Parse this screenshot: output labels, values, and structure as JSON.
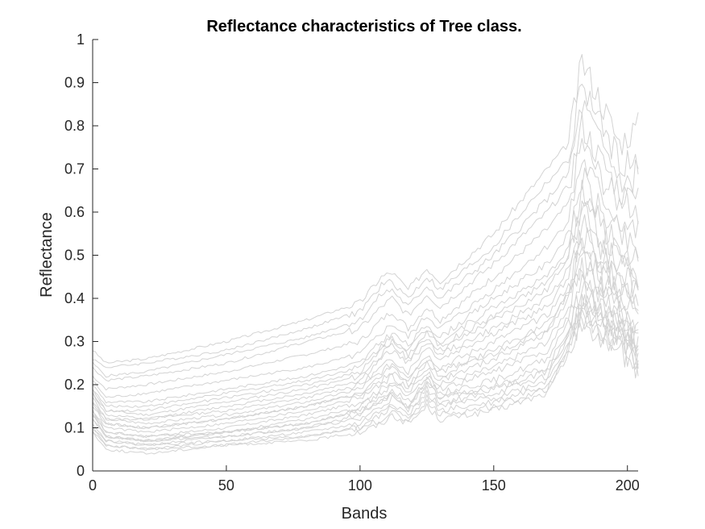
{
  "chart_data": {
    "type": "line",
    "title": "Reflectance characteristics of Tree class.",
    "xlabel": "Bands",
    "ylabel": "Reflectance",
    "xlim": [
      0,
      204
    ],
    "ylim": [
      0,
      1
    ],
    "xticks": [
      0,
      50,
      100,
      150,
      200
    ],
    "yticks": [
      0,
      0.1,
      0.2,
      0.3,
      0.4,
      0.5,
      0.6,
      0.7,
      0.8,
      0.9,
      1
    ],
    "xtick_labels": [
      "0",
      "50",
      "100",
      "150",
      "200"
    ],
    "ytick_labels": [
      "0",
      "0.1",
      "0.2",
      "0.3",
      "0.4",
      "0.5",
      "0.6",
      "0.7",
      "0.8",
      "0.9",
      "1"
    ],
    "grid": false,
    "legend": "none",
    "line_color": "#d3d3d3",
    "x_key_bands": [
      0,
      5,
      20,
      50,
      80,
      100,
      108,
      112,
      118,
      125,
      130,
      150,
      170,
      178,
      183,
      190,
      197,
      204
    ],
    "series": [
      {
        "values": [
          0.28,
          0.25,
          0.26,
          0.3,
          0.35,
          0.39,
          0.45,
          0.46,
          0.42,
          0.47,
          0.44,
          0.55,
          0.7,
          0.76,
          0.95,
          0.86,
          0.76,
          0.8
        ]
      },
      {
        "values": [
          0.26,
          0.24,
          0.25,
          0.28,
          0.33,
          0.37,
          0.43,
          0.44,
          0.4,
          0.45,
          0.42,
          0.52,
          0.67,
          0.72,
          0.9,
          0.8,
          0.72,
          0.7
        ]
      },
      {
        "values": [
          0.25,
          0.22,
          0.23,
          0.27,
          0.31,
          0.35,
          0.41,
          0.42,
          0.38,
          0.43,
          0.4,
          0.5,
          0.63,
          0.69,
          0.85,
          0.76,
          0.68,
          0.64
        ]
      },
      {
        "values": [
          0.24,
          0.21,
          0.22,
          0.25,
          0.3,
          0.33,
          0.38,
          0.4,
          0.36,
          0.41,
          0.38,
          0.48,
          0.6,
          0.66,
          0.8,
          0.72,
          0.65,
          0.6
        ]
      },
      {
        "values": [
          0.22,
          0.19,
          0.2,
          0.23,
          0.27,
          0.3,
          0.35,
          0.37,
          0.33,
          0.38,
          0.35,
          0.45,
          0.56,
          0.62,
          0.76,
          0.68,
          0.62,
          0.7
        ]
      },
      {
        "values": [
          0.21,
          0.17,
          0.18,
          0.21,
          0.24,
          0.27,
          0.32,
          0.34,
          0.31,
          0.36,
          0.33,
          0.42,
          0.52,
          0.58,
          0.72,
          0.64,
          0.58,
          0.55
        ]
      },
      {
        "values": [
          0.2,
          0.16,
          0.16,
          0.19,
          0.22,
          0.25,
          0.3,
          0.32,
          0.29,
          0.34,
          0.31,
          0.4,
          0.48,
          0.55,
          0.68,
          0.6,
          0.55,
          0.5
        ]
      },
      {
        "values": [
          0.19,
          0.15,
          0.15,
          0.18,
          0.21,
          0.24,
          0.29,
          0.31,
          0.28,
          0.33,
          0.3,
          0.38,
          0.45,
          0.52,
          0.65,
          0.57,
          0.52,
          0.48
        ]
      },
      {
        "values": [
          0.18,
          0.14,
          0.13,
          0.16,
          0.19,
          0.22,
          0.27,
          0.29,
          0.26,
          0.31,
          0.28,
          0.35,
          0.42,
          0.5,
          0.62,
          0.54,
          0.5,
          0.45
        ]
      },
      {
        "values": [
          0.18,
          0.13,
          0.12,
          0.15,
          0.18,
          0.21,
          0.26,
          0.28,
          0.25,
          0.3,
          0.27,
          0.33,
          0.4,
          0.47,
          0.58,
          0.5,
          0.47,
          0.42
        ]
      },
      {
        "values": [
          0.17,
          0.12,
          0.12,
          0.14,
          0.17,
          0.2,
          0.24,
          0.26,
          0.23,
          0.29,
          0.26,
          0.32,
          0.38,
          0.45,
          0.55,
          0.48,
          0.44,
          0.4
        ]
      },
      {
        "values": [
          0.16,
          0.12,
          0.11,
          0.13,
          0.16,
          0.19,
          0.23,
          0.25,
          0.22,
          0.27,
          0.24,
          0.3,
          0.36,
          0.43,
          0.52,
          0.46,
          0.42,
          0.38
        ]
      },
      {
        "values": [
          0.15,
          0.11,
          0.1,
          0.12,
          0.15,
          0.18,
          0.22,
          0.24,
          0.21,
          0.26,
          0.23,
          0.28,
          0.34,
          0.41,
          0.5,
          0.44,
          0.4,
          0.36
        ]
      },
      {
        "values": [
          0.14,
          0.1,
          0.09,
          0.11,
          0.14,
          0.17,
          0.2,
          0.22,
          0.19,
          0.24,
          0.21,
          0.26,
          0.32,
          0.4,
          0.48,
          0.42,
          0.38,
          0.35
        ]
      },
      {
        "values": [
          0.14,
          0.09,
          0.08,
          0.1,
          0.13,
          0.16,
          0.19,
          0.21,
          0.18,
          0.23,
          0.2,
          0.24,
          0.3,
          0.38,
          0.46,
          0.4,
          0.37,
          0.33
        ]
      },
      {
        "values": [
          0.13,
          0.09,
          0.08,
          0.09,
          0.12,
          0.15,
          0.18,
          0.2,
          0.17,
          0.22,
          0.19,
          0.23,
          0.28,
          0.36,
          0.44,
          0.38,
          0.35,
          0.32
        ]
      },
      {
        "values": [
          0.12,
          0.08,
          0.07,
          0.09,
          0.11,
          0.14,
          0.17,
          0.19,
          0.16,
          0.21,
          0.18,
          0.21,
          0.26,
          0.35,
          0.42,
          0.37,
          0.34,
          0.3
        ]
      },
      {
        "values": [
          0.12,
          0.08,
          0.07,
          0.08,
          0.1,
          0.13,
          0.16,
          0.18,
          0.15,
          0.2,
          0.17,
          0.2,
          0.24,
          0.33,
          0.4,
          0.36,
          0.33,
          0.28
        ]
      },
      {
        "values": [
          0.11,
          0.07,
          0.06,
          0.08,
          0.1,
          0.12,
          0.15,
          0.17,
          0.14,
          0.19,
          0.16,
          0.18,
          0.22,
          0.31,
          0.38,
          0.35,
          0.32,
          0.27
        ]
      },
      {
        "values": [
          0.1,
          0.07,
          0.06,
          0.07,
          0.09,
          0.11,
          0.14,
          0.16,
          0.13,
          0.18,
          0.15,
          0.17,
          0.21,
          0.3,
          0.37,
          0.34,
          0.31,
          0.26
        ]
      },
      {
        "values": [
          0.1,
          0.06,
          0.05,
          0.07,
          0.08,
          0.1,
          0.13,
          0.15,
          0.12,
          0.17,
          0.14,
          0.16,
          0.2,
          0.29,
          0.36,
          0.33,
          0.3,
          0.25
        ]
      },
      {
        "values": [
          0.09,
          0.06,
          0.05,
          0.06,
          0.08,
          0.1,
          0.12,
          0.14,
          0.11,
          0.16,
          0.13,
          0.15,
          0.19,
          0.28,
          0.35,
          0.32,
          0.29,
          0.24
        ]
      },
      {
        "values": [
          0.09,
          0.05,
          0.04,
          0.06,
          0.07,
          0.09,
          0.11,
          0.13,
          0.11,
          0.15,
          0.12,
          0.14,
          0.18,
          0.27,
          0.35,
          0.31,
          0.28,
          0.24
        ]
      },
      {
        "values": [
          0.19,
          0.14,
          0.14,
          0.17,
          0.2,
          0.23,
          0.28,
          0.3,
          0.27,
          0.32,
          0.29,
          0.36,
          0.44,
          0.5,
          0.6,
          0.52,
          0.48,
          0.46
        ]
      },
      {
        "values": [
          0.16,
          0.11,
          0.1,
          0.12,
          0.15,
          0.18,
          0.21,
          0.23,
          0.2,
          0.25,
          0.22,
          0.27,
          0.33,
          0.42,
          0.53,
          0.45,
          0.41,
          0.39
        ]
      },
      {
        "values": [
          0.13,
          0.08,
          0.07,
          0.09,
          0.11,
          0.14,
          0.16,
          0.18,
          0.15,
          0.2,
          0.17,
          0.19,
          0.23,
          0.32,
          0.41,
          0.36,
          0.33,
          0.29
        ]
      }
    ]
  }
}
